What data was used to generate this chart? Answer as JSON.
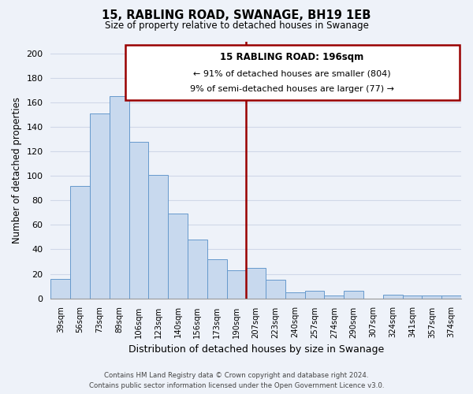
{
  "title": "15, RABLING ROAD, SWANAGE, BH19 1EB",
  "subtitle": "Size of property relative to detached houses in Swanage",
  "xlabel": "Distribution of detached houses by size in Swanage",
  "ylabel": "Number of detached properties",
  "bar_color": "#c8d9ee",
  "bar_edge_color": "#6699cc",
  "categories": [
    "39sqm",
    "56sqm",
    "73sqm",
    "89sqm",
    "106sqm",
    "123sqm",
    "140sqm",
    "156sqm",
    "173sqm",
    "190sqm",
    "207sqm",
    "223sqm",
    "240sqm",
    "257sqm",
    "274sqm",
    "290sqm",
    "307sqm",
    "324sqm",
    "341sqm",
    "357sqm",
    "374sqm"
  ],
  "values": [
    16,
    92,
    151,
    165,
    128,
    101,
    69,
    48,
    32,
    23,
    25,
    15,
    5,
    6,
    2,
    6,
    0,
    3,
    2,
    2,
    2
  ],
  "ylim": [
    0,
    210
  ],
  "yticks": [
    0,
    20,
    40,
    60,
    80,
    100,
    120,
    140,
    160,
    180,
    200
  ],
  "vline_x": 9.5,
  "vline_color": "#990000",
  "annotation_title": "15 RABLING ROAD: 196sqm",
  "annotation_line1": "← 91% of detached houses are smaller (804)",
  "annotation_line2": "9% of semi-detached houses are larger (77) →",
  "annotation_box_facecolor": "#ffffff",
  "annotation_box_edgecolor": "#990000",
  "footer_line1": "Contains HM Land Registry data © Crown copyright and database right 2024.",
  "footer_line2": "Contains public sector information licensed under the Open Government Licence v3.0.",
  "background_color": "#eef2f9",
  "grid_color": "#d0d8e8"
}
